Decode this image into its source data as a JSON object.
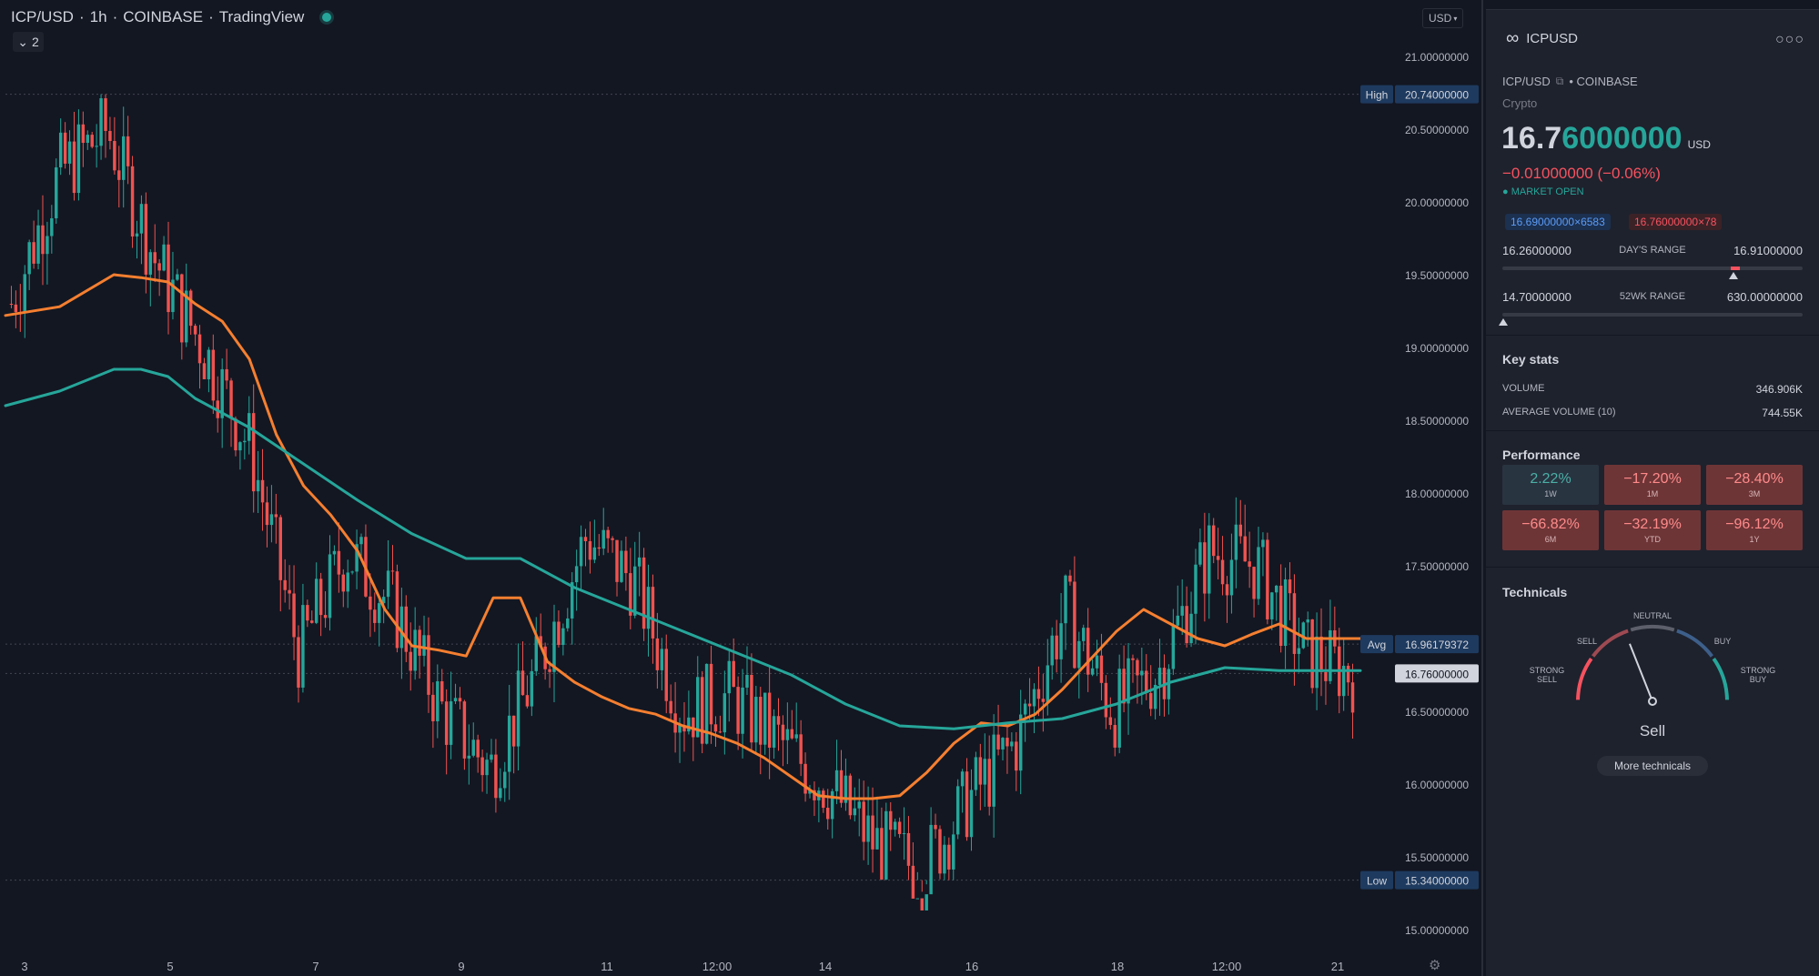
{
  "chart_header": {
    "symbol": "ICP/USD",
    "interval": "1h",
    "exchange": "COINBASE",
    "source": "TradingView",
    "indicator_count": "2",
    "currency_button": "USD",
    "collapse_icon": "chevron-down-icon",
    "gear_icon": "gear-icon"
  },
  "chart_data": {
    "type": "line",
    "title": "",
    "x_ticks": [
      "3",
      "5",
      "7",
      "9",
      "11",
      "12:00",
      "14",
      "16",
      "18",
      "12:00",
      "21"
    ],
    "y_ticks": [
      "21.00000000",
      "20.50000000",
      "20.00000000",
      "19.50000000",
      "19.00000000",
      "18.50000000",
      "18.00000000",
      "17.50000000",
      "17.00000000",
      "16.50000000",
      "16.00000000",
      "15.50000000",
      "15.00000000"
    ],
    "ylim": [
      14.9,
      21.25
    ],
    "y_scale": "linear",
    "grid": false,
    "series": [
      {
        "color": "#f57f30",
        "x": [
          0,
          4,
          8,
          10,
          12,
          14,
          16,
          18,
          20,
          22,
          24,
          26,
          28,
          30,
          32,
          34,
          36,
          38,
          40,
          42,
          44,
          46,
          48,
          50,
          52,
          54,
          56,
          58,
          60,
          62,
          64,
          66,
          68,
          70,
          72,
          74,
          76,
          78,
          80,
          82,
          84,
          86,
          88,
          90,
          92,
          94,
          96,
          100
        ],
        "y": [
          19.22,
          19.28,
          19.5,
          19.48,
          19.45,
          19.3,
          19.18,
          18.92,
          18.4,
          18.05,
          17.85,
          17.6,
          17.2,
          16.95,
          16.92,
          16.88,
          17.28,
          17.28,
          16.84,
          16.7,
          16.6,
          16.52,
          16.48,
          16.4,
          16.35,
          16.28,
          16.18,
          16.05,
          15.92,
          15.9,
          15.9,
          15.92,
          16.08,
          16.28,
          16.42,
          16.4,
          16.48,
          16.65,
          16.85,
          17.05,
          17.2,
          17.1,
          17.0,
          16.95,
          17.03,
          17.1,
          17.0,
          17.0
        ],
        "y_note": "x is fraction of the visible time span (0 = left edge, 100 = last bar)"
      },
      {
        "color": "#26a69a",
        "x": [
          0,
          4,
          8,
          10,
          12,
          14,
          18,
          22,
          26,
          30,
          34,
          38,
          42,
          46,
          50,
          54,
          58,
          62,
          66,
          70,
          74,
          78,
          82,
          86,
          90,
          94,
          98,
          100
        ],
        "y": [
          18.6,
          18.7,
          18.85,
          18.85,
          18.8,
          18.65,
          18.45,
          18.2,
          17.95,
          17.72,
          17.55,
          17.55,
          17.35,
          17.2,
          17.05,
          16.9,
          16.75,
          16.55,
          16.4,
          16.38,
          16.42,
          16.45,
          16.55,
          16.7,
          16.8,
          16.78,
          16.78,
          16.78
        ]
      }
    ],
    "candles_close_samples": [
      19.3,
      20.2,
      20.5,
      19.6,
      19.0,
      18.3,
      16.9,
      17.6,
      17.2,
      16.5,
      16.1,
      16.8,
      17.7,
      17.4,
      16.5,
      16.6,
      16.3,
      16.0,
      15.6,
      15.4,
      15.9,
      16.3,
      17.2,
      16.5,
      16.8,
      17.6,
      17.5,
      16.9,
      16.76
    ],
    "labels": {
      "high_label": "High",
      "high_value": "20.74000000",
      "high": 20.74,
      "low_label": "Low",
      "low_value": "15.34000000",
      "low": 15.34,
      "avg_label": "Avg",
      "avg_value": "16.96179372",
      "avg": 16.96179372,
      "last_value": "16.76000000",
      "last": 16.76
    },
    "colors": {
      "up": "#26a69a",
      "down": "#ef5350"
    }
  },
  "panel": {
    "logo_icon": "infinity-icon",
    "symbol": "ICPUSD",
    "more_icon": "more-dots-icon",
    "pair": "ICP/USD",
    "external_icon": "external-link-icon",
    "exchange": "• COINBASE",
    "type": "Crypto",
    "price_main": "16.7",
    "price_tail": "6000000",
    "price_currency": "USD",
    "change": "−0.01000000 (−0.06%)",
    "market_status": "● MARKET OPEN",
    "bid": "16.69000000×6583",
    "ask": "16.76000000×78",
    "days_range": {
      "low": "16.26000000",
      "label": "DAY'S RANGE",
      "high": "16.91000000",
      "position": 0.77
    },
    "week52_range": {
      "low": "14.70000000",
      "label": "52WK RANGE",
      "high": "630.00000000",
      "position": 0.003
    },
    "key_stats": {
      "title": "Key stats",
      "volume_label": "VOLUME",
      "volume_value": "346.906K",
      "avg_volume_label": "AVERAGE VOLUME (10)",
      "avg_volume_value": "744.55K"
    },
    "performance": {
      "title": "Performance",
      "cells": [
        {
          "value": "2.22%",
          "label": "1W",
          "positive": true
        },
        {
          "value": "−17.20%",
          "label": "1M",
          "positive": false
        },
        {
          "value": "−28.40%",
          "label": "3M",
          "positive": false
        },
        {
          "value": "−66.82%",
          "label": "6M",
          "positive": false
        },
        {
          "value": "−32.19%",
          "label": "YTD",
          "positive": false
        },
        {
          "value": "−96.12%",
          "label": "1Y",
          "positive": false
        }
      ]
    },
    "technicals": {
      "title": "Technicals",
      "neutral": "NEUTRAL",
      "sell": "SELL",
      "buy": "BUY",
      "strong_sell_1": "STRONG",
      "strong_sell_2": "SELL",
      "strong_buy_1": "STRONG",
      "strong_buy_2": "BUY",
      "result": "Sell",
      "more_button": "More technicals",
      "needle_value": 0.38
    }
  }
}
